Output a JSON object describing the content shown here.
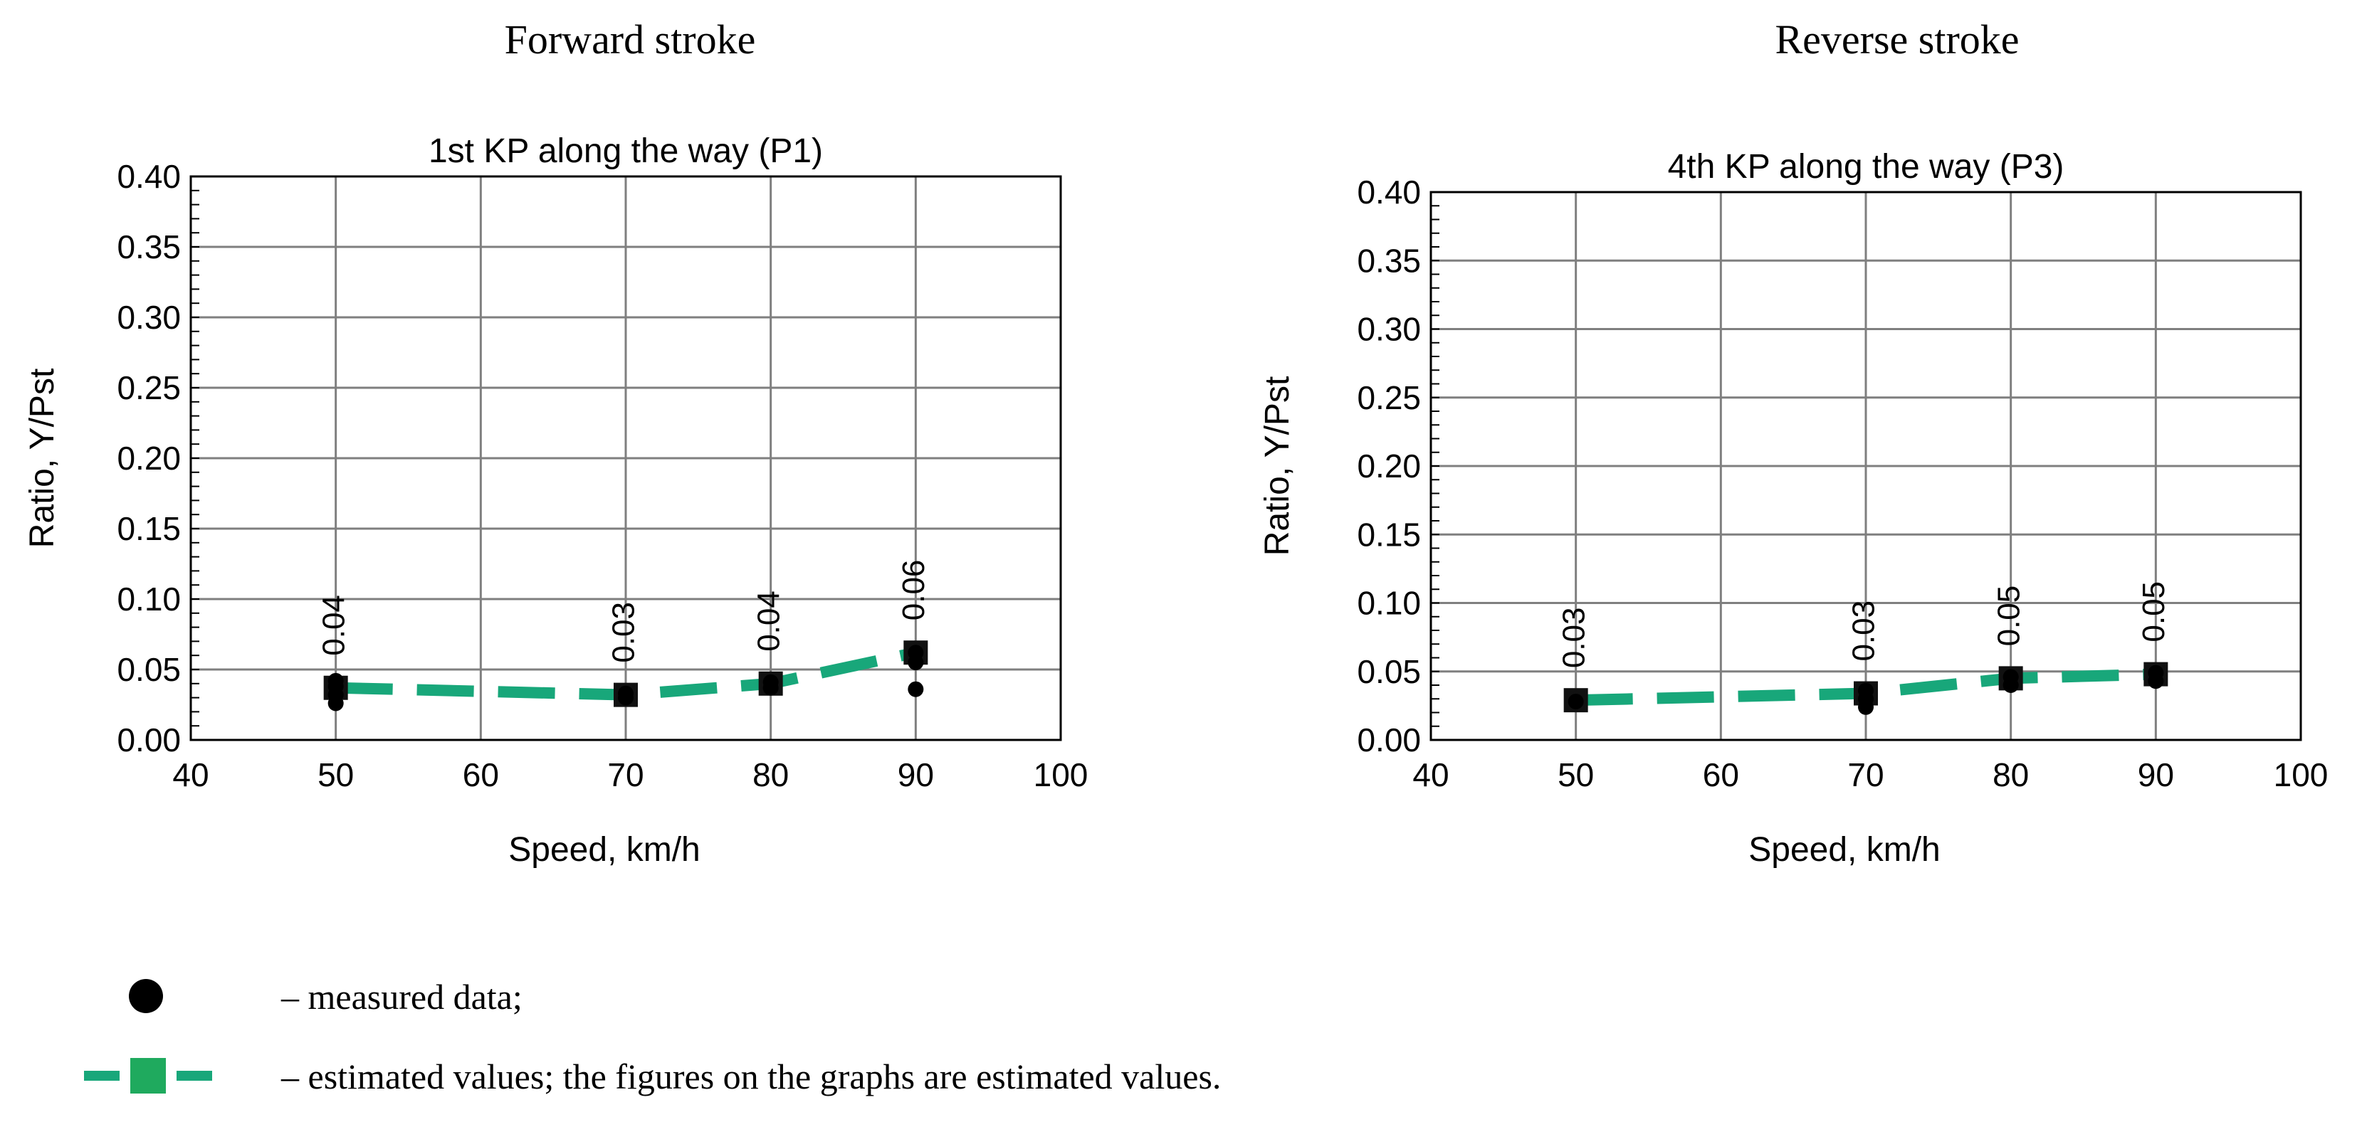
{
  "sections": [
    {
      "title": "Forward stroke"
    },
    {
      "title": "Reverse stroke"
    }
  ],
  "chart_data": [
    {
      "type": "line",
      "title": "1st KP along the way (P1)",
      "xlabel": "Speed, km/h",
      "ylabel": "Ratio, Y/Pst",
      "xlim": [
        40,
        100
      ],
      "ylim": [
        0,
        0.4
      ],
      "x_ticks": [
        "40",
        "50",
        "60",
        "70",
        "80",
        "90",
        "100"
      ],
      "y_ticks": [
        "0.00",
        "0.05",
        "0.10",
        "0.15",
        "0.20",
        "0.25",
        "0.30",
        "0.35",
        "0.40"
      ],
      "grid": true,
      "series": [
        {
          "kind": "estimated",
          "x": [
            50,
            70,
            80,
            90
          ],
          "y": [
            0.037,
            0.032,
            0.04,
            0.062
          ],
          "labels": [
            "0.04",
            "0.03",
            "0.04",
            "0.06"
          ],
          "color": "#18a77a"
        },
        {
          "kind": "measured",
          "x": [
            50,
            50,
            50,
            50,
            70,
            70,
            80,
            80,
            90,
            90,
            90
          ],
          "y": [
            0.026,
            0.032,
            0.038,
            0.042,
            0.03,
            0.033,
            0.037,
            0.041,
            0.036,
            0.055,
            0.062
          ],
          "color": "#000000"
        }
      ]
    },
    {
      "type": "line",
      "title": "4th KP along the way (P3)",
      "xlabel": "Speed, km/h",
      "ylabel": "Ratio, Y/Pst",
      "xlim": [
        40,
        100
      ],
      "ylim": [
        0,
        0.4
      ],
      "x_ticks": [
        "40",
        "50",
        "60",
        "70",
        "80",
        "90",
        "100"
      ],
      "y_ticks": [
        "0.00",
        "0.05",
        "0.10",
        "0.15",
        "0.20",
        "0.25",
        "0.30",
        "0.35",
        "0.40"
      ],
      "grid": true,
      "series": [
        {
          "kind": "estimated",
          "x": [
            50,
            70,
            80,
            90
          ],
          "y": [
            0.029,
            0.034,
            0.045,
            0.048
          ],
          "labels": [
            "0.03",
            "0.03",
            "0.05",
            "0.05"
          ],
          "color": "#18a77a"
        },
        {
          "kind": "measured",
          "x": [
            50,
            70,
            70,
            70,
            80,
            80,
            90,
            90
          ],
          "y": [
            0.028,
            0.024,
            0.03,
            0.036,
            0.04,
            0.046,
            0.043,
            0.049
          ],
          "color": "#000000"
        }
      ]
    }
  ],
  "legend": {
    "measured": "– measured data;",
    "estimated": "– estimated values; the figures on the graphs are estimated values."
  }
}
